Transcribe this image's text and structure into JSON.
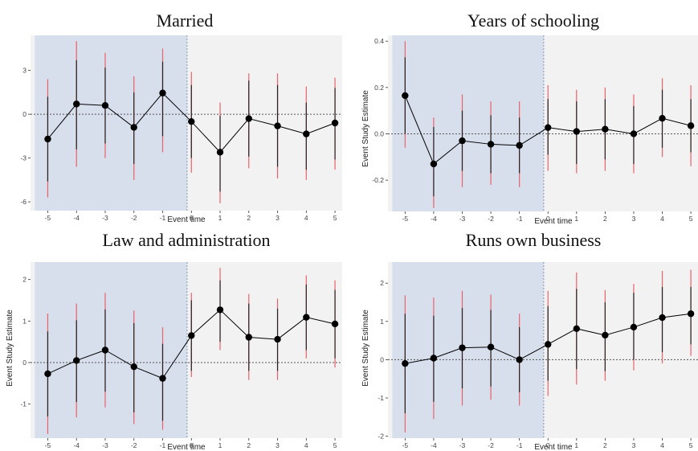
{
  "chart_data": [
    {
      "type": "scatter",
      "title": "Married",
      "xlabel": "Event time",
      "ylabel": "",
      "x": [
        -5,
        -4,
        -3,
        -2,
        -1,
        0,
        1,
        2,
        3,
        4,
        5
      ],
      "y": [
        -1.7,
        0.7,
        0.6,
        -0.9,
        1.45,
        -0.5,
        -2.6,
        -0.3,
        -0.8,
        -1.35,
        -0.6
      ],
      "ci_inner": [
        [
          -4.6,
          1.2
        ],
        [
          -2.4,
          3.7
        ],
        [
          -2.0,
          3.2
        ],
        [
          -3.4,
          1.5
        ],
        [
          -1.5,
          3.6
        ],
        [
          -3.0,
          2.0
        ],
        [
          -5.3,
          -0.1
        ],
        [
          -2.9,
          2.3
        ],
        [
          -3.6,
          2.0
        ],
        [
          -3.8,
          0.8
        ],
        [
          -3.1,
          1.8
        ]
      ],
      "ci_outer": [
        [
          -5.7,
          2.4
        ],
        [
          -3.6,
          5.0
        ],
        [
          -3.0,
          4.2
        ],
        [
          -4.5,
          2.6
        ],
        [
          -2.6,
          4.5
        ],
        [
          -4.0,
          2.9
        ],
        [
          -6.1,
          0.8
        ],
        [
          -3.7,
          2.8
        ],
        [
          -4.4,
          2.8
        ],
        [
          -4.5,
          1.9
        ],
        [
          -3.8,
          2.5
        ]
      ],
      "xticks": [
        -5,
        -4,
        -3,
        -2,
        -1,
        0,
        1,
        2,
        3,
        4,
        5
      ],
      "yticks": [
        -6,
        -3,
        0,
        3
      ],
      "ytick_labels": [
        "-6",
        "-3",
        "0",
        "3"
      ],
      "xlim": [
        -5.6,
        5.25
      ],
      "ylim": [
        -6.6,
        5.4
      ],
      "treatment_line_x": -0.15,
      "pre_period_shaded": true,
      "grid": false
    },
    {
      "type": "scatter",
      "title": "Years of schooling",
      "xlabel": "Event time",
      "ylabel": "Event Study Estimate",
      "x": [
        -5,
        -4,
        -3,
        -2,
        -1,
        0,
        1,
        2,
        3,
        4,
        5
      ],
      "y": [
        0.165,
        -0.13,
        -0.03,
        -0.045,
        -0.05,
        0.027,
        0.01,
        0.02,
        0.0,
        0.067,
        0.035
      ],
      "ci_inner": [
        [
          0.0,
          0.33
        ],
        [
          -0.27,
          0.03
        ],
        [
          -0.16,
          0.1
        ],
        [
          -0.17,
          0.08
        ],
        [
          -0.17,
          0.07
        ],
        [
          -0.09,
          0.15
        ],
        [
          -0.13,
          0.14
        ],
        [
          -0.11,
          0.15
        ],
        [
          -0.13,
          0.12
        ],
        [
          -0.06,
          0.19
        ],
        [
          -0.08,
          0.15
        ]
      ],
      "ci_outer": [
        [
          -0.06,
          0.4
        ],
        [
          -0.32,
          0.07
        ],
        [
          -0.23,
          0.17
        ],
        [
          -0.22,
          0.14
        ],
        [
          -0.23,
          0.14
        ],
        [
          -0.16,
          0.21
        ],
        [
          -0.17,
          0.19
        ],
        [
          -0.16,
          0.2
        ],
        [
          -0.17,
          0.17
        ],
        [
          -0.1,
          0.24
        ],
        [
          -0.14,
          0.21
        ]
      ],
      "xticks": [
        -5,
        -4,
        -3,
        -2,
        -1,
        0,
        1,
        2,
        3,
        4,
        5
      ],
      "yticks": [
        -0.2,
        0.0,
        0.2,
        0.4
      ],
      "ytick_labels": [
        "-0.2",
        "0.0",
        "0.2",
        "0.4"
      ],
      "xlim": [
        -5.6,
        5.25
      ],
      "ylim": [
        -0.335,
        0.425
      ],
      "treatment_line_x": -0.15,
      "pre_period_shaded": true,
      "grid": false
    },
    {
      "type": "scatter",
      "title": "Law and administration",
      "xlabel": "Event time",
      "ylabel": "Event Study Estimate",
      "x": [
        -5,
        -4,
        -3,
        -2,
        -1,
        0,
        1,
        2,
        3,
        4,
        5
      ],
      "y": [
        -0.27,
        0.05,
        0.3,
        -0.1,
        -0.38,
        0.65,
        1.27,
        0.61,
        0.56,
        1.09,
        0.93
      ],
      "ci_inner": [
        [
          -1.3,
          0.75
        ],
        [
          -0.95,
          1.02
        ],
        [
          -0.7,
          1.28
        ],
        [
          -1.2,
          0.95
        ],
        [
          -1.4,
          0.45
        ],
        [
          -0.2,
          1.5
        ],
        [
          0.5,
          1.98
        ],
        [
          -0.2,
          1.42
        ],
        [
          -0.2,
          1.3
        ],
        [
          0.3,
          1.88
        ],
        [
          0.1,
          1.75
        ]
      ],
      "ci_outer": [
        [
          -1.72,
          1.18
        ],
        [
          -1.32,
          1.42
        ],
        [
          -1.08,
          1.68
        ],
        [
          -1.48,
          1.25
        ],
        [
          -1.62,
          0.85
        ],
        [
          -0.35,
          1.68
        ],
        [
          0.3,
          2.28
        ],
        [
          -0.42,
          1.65
        ],
        [
          -0.42,
          1.54
        ],
        [
          0.1,
          2.1
        ],
        [
          -0.12,
          1.98
        ]
      ],
      "xticks": [
        -5,
        -4,
        -3,
        -2,
        -1,
        0,
        1,
        2,
        3,
        4,
        5
      ],
      "yticks": [
        -1,
        0,
        1,
        2
      ],
      "ytick_labels": [
        "-1",
        "0",
        "1",
        "2"
      ],
      "xlim": [
        -5.6,
        5.25
      ],
      "ylim": [
        -1.82,
        2.42
      ],
      "treatment_line_x": -0.15,
      "pre_period_shaded": true,
      "grid": false
    },
    {
      "type": "scatter",
      "title": "Runs own business",
      "xlabel": "Event time",
      "ylabel": "Event Study Estimate",
      "x": [
        -5,
        -4,
        -3,
        -2,
        -1,
        0,
        1,
        2,
        3,
        4,
        5
      ],
      "y": [
        -0.1,
        0.04,
        0.31,
        0.33,
        0.0,
        0.4,
        0.81,
        0.64,
        0.85,
        1.1,
        1.2
      ],
      "ci_inner": [
        [
          -1.4,
          1.2
        ],
        [
          -1.1,
          1.15
        ],
        [
          -0.75,
          1.35
        ],
        [
          -0.7,
          1.3
        ],
        [
          -0.85,
          0.85
        ],
        [
          -0.55,
          1.4
        ],
        [
          -0.25,
          1.85
        ],
        [
          -0.3,
          1.5
        ],
        [
          0.0,
          1.75
        ],
        [
          0.2,
          1.9
        ],
        [
          0.4,
          1.9
        ]
      ],
      "ci_outer": [
        [
          -1.9,
          1.68
        ],
        [
          -1.55,
          1.62
        ],
        [
          -1.2,
          1.8
        ],
        [
          -1.05,
          1.7
        ],
        [
          -1.2,
          1.2
        ],
        [
          -0.95,
          1.8
        ],
        [
          -0.65,
          2.28
        ],
        [
          -0.55,
          1.82
        ],
        [
          -0.28,
          1.98
        ],
        [
          -0.1,
          2.32
        ],
        [
          0.1,
          2.35
        ]
      ],
      "xticks": [
        -5,
        -4,
        -3,
        -2,
        -1,
        0,
        1,
        2,
        3,
        4,
        5
      ],
      "yticks": [
        -2,
        -1,
        0,
        1,
        2
      ],
      "ytick_labels": [
        "-2",
        "-1",
        "0",
        "1",
        "2"
      ],
      "xlim": [
        -5.6,
        5.25
      ],
      "ylim": [
        -2.05,
        2.55
      ],
      "treatment_line_x": -0.15,
      "pre_period_shaded": true,
      "grid": false
    }
  ],
  "colors": {
    "panel_bg": "#f2f2f2",
    "pre_period_shade": "#d7dfec",
    "point": "#000000",
    "ci_inner": "#222222",
    "ci_outer": "#e8626b",
    "zero_line": "#555555",
    "treatment_line": "#7f99b8"
  }
}
